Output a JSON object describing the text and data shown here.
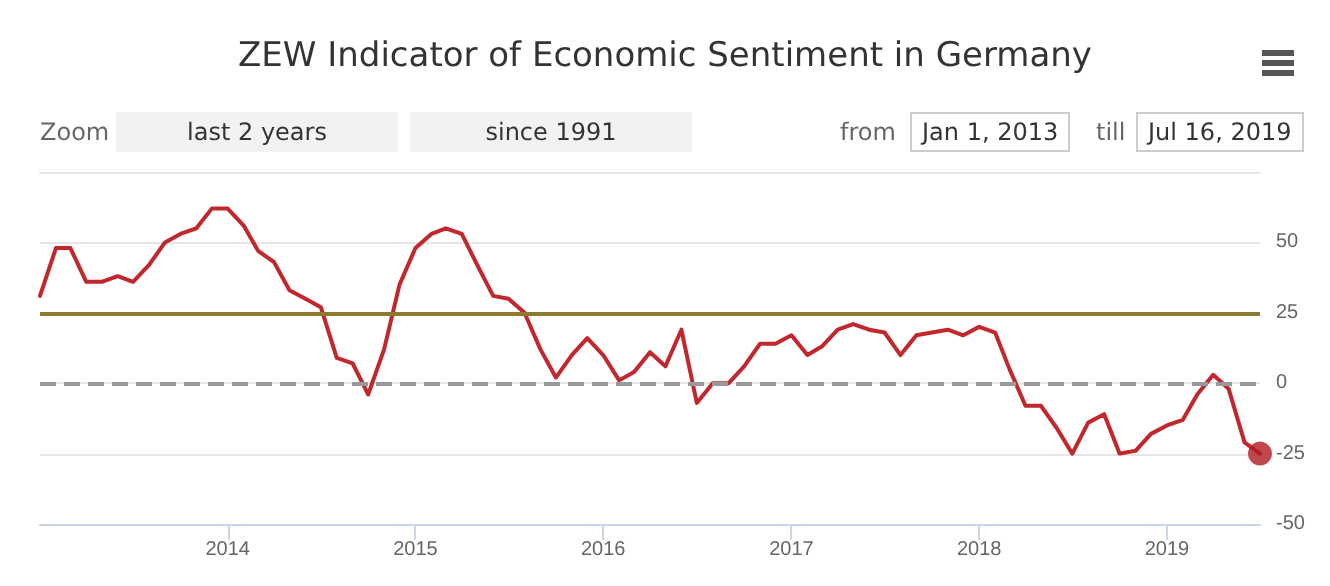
{
  "chart_data": {
    "type": "line",
    "title": "ZEW Indicator of Economic Sentiment in Germany",
    "annotations": [
      "Zoom",
      "last 2 years",
      "since 1991",
      "from",
      "Jan 1, 2013",
      "till",
      "Jul 16, 2019"
    ],
    "x": [
      "2013-01",
      "2013-02",
      "2013-03",
      "2013-04",
      "2013-05",
      "2013-06",
      "2013-07",
      "2013-08",
      "2013-09",
      "2013-10",
      "2013-11",
      "2013-12",
      "2014-01",
      "2014-02",
      "2014-03",
      "2014-04",
      "2014-05",
      "2014-06",
      "2014-07",
      "2014-08",
      "2014-09",
      "2014-10",
      "2014-11",
      "2014-12",
      "2015-01",
      "2015-02",
      "2015-03",
      "2015-04",
      "2015-05",
      "2015-06",
      "2015-07",
      "2015-08",
      "2015-09",
      "2015-10",
      "2015-11",
      "2015-12",
      "2016-01",
      "2016-02",
      "2016-03",
      "2016-04",
      "2016-05",
      "2016-06",
      "2016-07",
      "2016-08",
      "2016-09",
      "2016-10",
      "2016-11",
      "2016-12",
      "2017-01",
      "2017-02",
      "2017-03",
      "2017-04",
      "2017-05",
      "2017-06",
      "2017-07",
      "2017-08",
      "2017-09",
      "2017-10",
      "2017-11",
      "2017-12",
      "2018-01",
      "2018-02",
      "2018-03",
      "2018-04",
      "2018-05",
      "2018-06",
      "2018-07",
      "2018-08",
      "2018-09",
      "2018-10",
      "2018-11",
      "2018-12",
      "2019-01",
      "2019-02",
      "2019-03",
      "2019-04",
      "2019-05",
      "2019-06",
      "2019-07"
    ],
    "series": [
      {
        "type": "line",
        "color": "#c1272d",
        "marker": "none",
        "line_style": "solid",
        "values": [
          31,
          48,
          48,
          36,
          36,
          38,
          36,
          42,
          50,
          53,
          55,
          62,
          62,
          56,
          47,
          43,
          33,
          30,
          27,
          9,
          7,
          -4,
          12,
          35,
          48,
          53,
          55,
          53,
          42,
          31,
          30,
          25,
          12,
          2,
          10,
          16,
          10,
          1,
          4,
          11,
          6,
          19,
          -7,
          0,
          0,
          6,
          14,
          14,
          17,
          10,
          13,
          19,
          21,
          19,
          18,
          10,
          17,
          18,
          19,
          17,
          20,
          18,
          5,
          -8,
          -8,
          -16,
          -25,
          -14,
          -11,
          -25,
          -24,
          -18,
          -15,
          -13,
          -4,
          3,
          -2,
          -21,
          -25
        ]
      },
      {
        "type": "scatter",
        "color": "#b01c22",
        "marker": "circle",
        "x": [
          "2019-07"
        ],
        "values": [
          -25
        ]
      }
    ],
    "xlim": [
      "2013-01",
      "2019-07"
    ],
    "xticks": [
      "2014",
      "2015",
      "2016",
      "2017",
      "2018",
      "2019"
    ],
    "ylim": [
      -50,
      75
    ],
    "yticks": [
      -50,
      -25,
      0,
      25,
      50
    ],
    "grid": "y",
    "ref_lines": [
      {
        "axis": "y",
        "value": 25,
        "color": "#8c7a2e",
        "line_style": "solid"
      },
      {
        "axis": "y",
        "value": 0,
        "color": "#999999",
        "line_style": "dashed"
      }
    ]
  }
}
